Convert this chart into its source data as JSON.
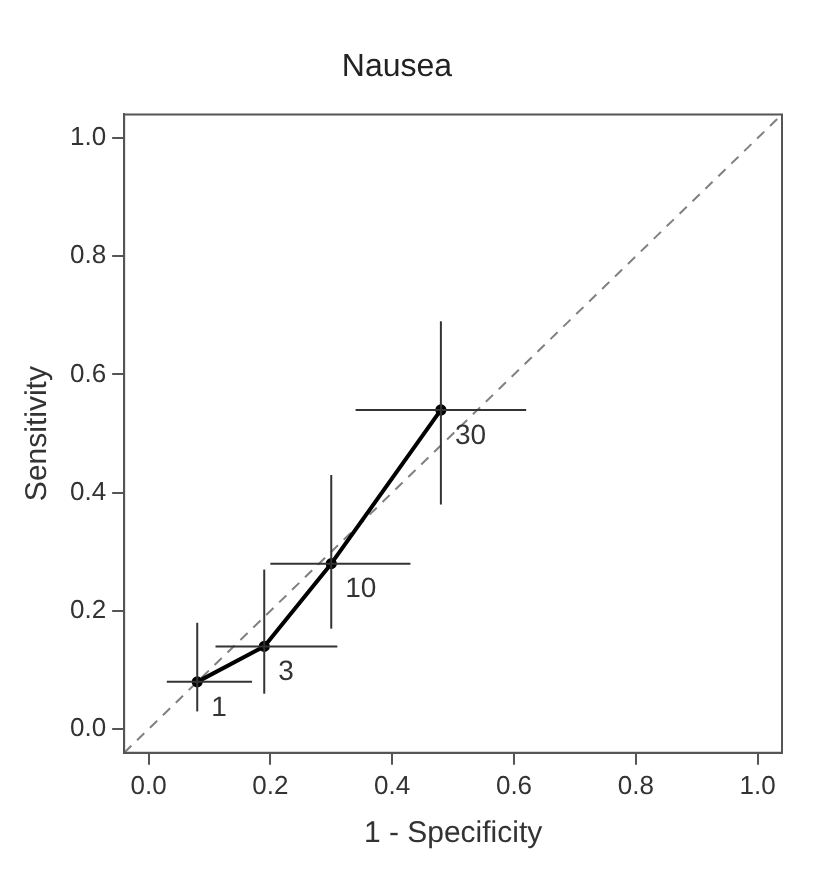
{
  "chart_data": {
    "type": "line",
    "title": "Nausea",
    "xlabel": "1 - Specificity",
    "ylabel": "Sensitivity",
    "xlim": [
      -0.04,
      1.04
    ],
    "ylim": [
      -0.04,
      1.04
    ],
    "xticks": [
      {
        "value": 0,
        "label": "0.0"
      },
      {
        "value": 0.2,
        "label": "0.2"
      },
      {
        "value": 0.4,
        "label": "0.4"
      },
      {
        "value": 0.6,
        "label": "0.6"
      },
      {
        "value": 0.8,
        "label": "0.8"
      },
      {
        "value": 1,
        "label": "1.0"
      }
    ],
    "yticks": [
      {
        "value": 0,
        "label": "0.0"
      },
      {
        "value": 0.2,
        "label": "0.2"
      },
      {
        "value": 0.4,
        "label": "0.4"
      },
      {
        "value": 0.6,
        "label": "0.6"
      },
      {
        "value": 0.8,
        "label": "0.8"
      },
      {
        "value": 1,
        "label": "1.0"
      }
    ],
    "grid": false,
    "legend": false,
    "marker": "circle",
    "series": [
      {
        "type": "line",
        "color": "#000000",
        "x": [
          0.08,
          0.19,
          0.3,
          0.48
        ],
        "values": [
          0.08,
          0.14,
          0.28,
          0.54
        ],
        "xerrors": [
          [
            0.03,
            0.17
          ],
          [
            0.11,
            0.31
          ],
          [
            0.2,
            0.43
          ],
          [
            0.34,
            0.62
          ]
        ],
        "errors": [
          [
            0.03,
            0.18
          ],
          [
            0.06,
            0.27
          ],
          [
            0.17,
            0.43
          ],
          [
            0.38,
            0.69
          ]
        ]
      },
      {
        "type": "line",
        "color": "#808080",
        "line_style": "dashed",
        "marker": "none",
        "x": [
          -0.04,
          1.04
        ],
        "values": [
          -0.04,
          1.04
        ]
      }
    ],
    "annotations": [
      {
        "text": "1",
        "x": 0.08,
        "y": 0.08
      },
      {
        "text": "3",
        "x": 0.19,
        "y": 0.14
      },
      {
        "text": "10",
        "x": 0.3,
        "y": 0.28
      },
      {
        "text": "30",
        "x": 0.48,
        "y": 0.54
      }
    ]
  }
}
